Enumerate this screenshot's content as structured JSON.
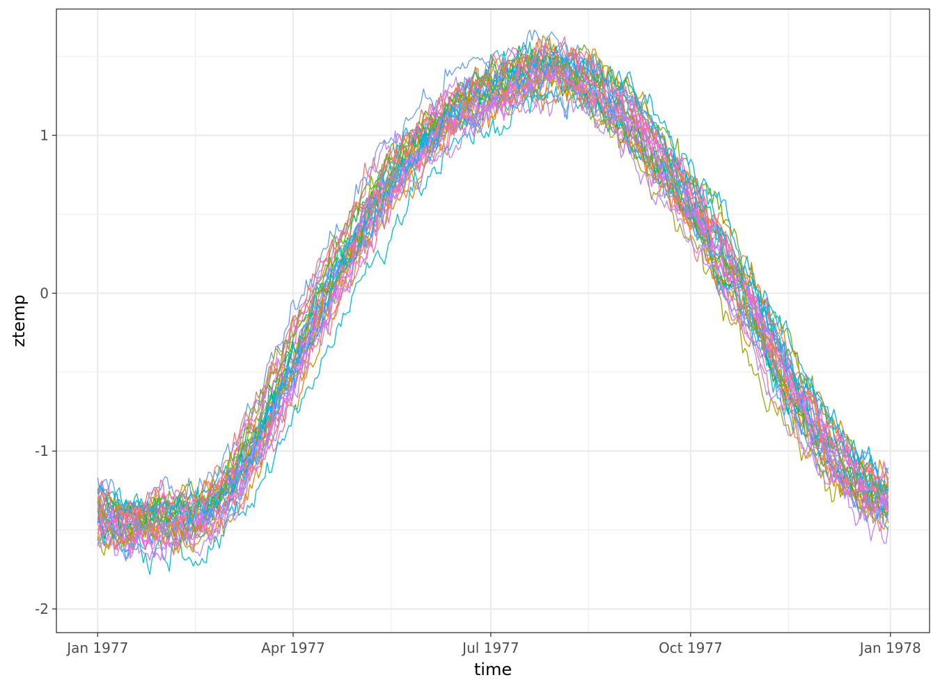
{
  "chart_data": {
    "type": "line",
    "xlabel": "time",
    "ylabel": "ztemp",
    "xlim": [
      "1976-12-13",
      "1978-01-19"
    ],
    "ylim": [
      -2.15,
      1.8
    ],
    "x_ticks": [
      {
        "date": "1977-01-01",
        "label": "Jan 1977"
      },
      {
        "date": "1977-04-01",
        "label": "Apr 1977"
      },
      {
        "date": "1977-07-01",
        "label": "Jul 1977"
      },
      {
        "date": "1977-10-01",
        "label": "Oct 1977"
      },
      {
        "date": "1978-01-01",
        "label": "Jan 1978"
      }
    ],
    "x_minor_ticks": [
      "1977-02-15",
      "1977-05-16",
      "1977-08-15",
      "1977-11-15"
    ],
    "y_ticks": [
      {
        "value": -2,
        "label": "-2"
      },
      {
        "value": -1,
        "label": "-1"
      },
      {
        "value": 0,
        "label": "0"
      },
      {
        "value": 1,
        "label": "1"
      }
    ],
    "y_minor_ticks": [
      -1.5,
      -0.5,
      0.5,
      1.5
    ],
    "grid": true,
    "legend": "none",
    "series_count": 36,
    "series_colors": [
      "#F8766D",
      "#E58700",
      "#C99800",
      "#A3A500",
      "#6BB100",
      "#00BA38",
      "#00BF7D",
      "#00C0AF",
      "#00BCD8",
      "#00B0F6",
      "#619CFF",
      "#B983FF",
      "#E76BF3",
      "#FD61D1",
      "#FF67A4",
      "#F8766D",
      "#E58700",
      "#00B0F6",
      "#E76BF3",
      "#619CFF",
      "#00BA38",
      "#FF67A4",
      "#C99800",
      "#00BCD8",
      "#FD61D1",
      "#A3A500",
      "#B983FF",
      "#E58700",
      "#00C0AF",
      "#F8766D",
      "#619CFF",
      "#6BB100",
      "#E76BF3",
      "#00B0F6",
      "#FF67A4",
      "#B983FF"
    ],
    "mean_curve": [
      {
        "date": "1977-01-01",
        "value": -1.4
      },
      {
        "date": "1977-01-15",
        "value": -1.5
      },
      {
        "date": "1977-02-01",
        "value": -1.45
      },
      {
        "date": "1977-02-15",
        "value": -1.45
      },
      {
        "date": "1977-03-01",
        "value": -1.3
      },
      {
        "date": "1977-03-15",
        "value": -0.95
      },
      {
        "date": "1977-04-01",
        "value": -0.45
      },
      {
        "date": "1977-04-15",
        "value": -0.05
      },
      {
        "date": "1977-05-01",
        "value": 0.35
      },
      {
        "date": "1977-05-15",
        "value": 0.7
      },
      {
        "date": "1977-06-01",
        "value": 0.95
      },
      {
        "date": "1977-06-15",
        "value": 1.15
      },
      {
        "date": "1977-07-01",
        "value": 1.25
      },
      {
        "date": "1977-07-15",
        "value": 1.35
      },
      {
        "date": "1977-08-01",
        "value": 1.4
      },
      {
        "date": "1977-08-15",
        "value": 1.3
      },
      {
        "date": "1977-09-01",
        "value": 1.1
      },
      {
        "date": "1977-09-15",
        "value": 0.85
      },
      {
        "date": "1977-10-01",
        "value": 0.55
      },
      {
        "date": "1977-10-15",
        "value": 0.2
      },
      {
        "date": "1977-11-01",
        "value": -0.2
      },
      {
        "date": "1977-11-15",
        "value": -0.6
      },
      {
        "date": "1977-12-01",
        "value": -0.95
      },
      {
        "date": "1977-12-15",
        "value": -1.2
      },
      {
        "date": "1977-12-31",
        "value": -1.35
      }
    ]
  }
}
